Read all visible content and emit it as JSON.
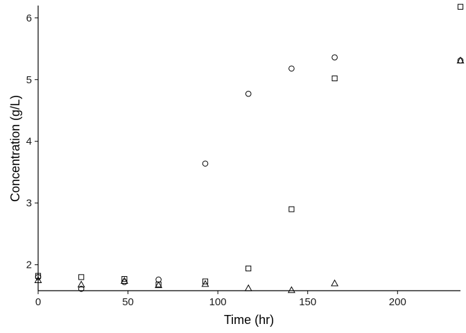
{
  "chart_data": {
    "type": "scatter",
    "title": "",
    "xlabel": "Time (hr)",
    "ylabel": "Concentration (g/L)",
    "xlim": [
      0,
      235
    ],
    "ylim": [
      1.58,
      6.2
    ],
    "xticks": [
      0,
      50,
      100,
      150,
      200
    ],
    "yticks": [
      2,
      3,
      4,
      5,
      6
    ],
    "grid": false,
    "legend": "none",
    "series": [
      {
        "marker": "circle",
        "x": [
          0,
          24,
          48,
          67,
          93,
          117,
          141,
          165,
          235
        ],
        "y": [
          1.8,
          1.61,
          1.72,
          1.76,
          3.64,
          4.77,
          5.18,
          5.36,
          5.31
        ]
      },
      {
        "marker": "square",
        "x": [
          0,
          24,
          48,
          67,
          93,
          117,
          141,
          165,
          235
        ],
        "y": [
          1.82,
          1.8,
          1.77,
          1.68,
          1.73,
          1.94,
          2.9,
          5.02,
          6.18
        ]
      },
      {
        "marker": "triangle",
        "x": [
          0,
          24,
          48,
          67,
          93,
          117,
          141,
          165,
          235
        ],
        "y": [
          1.75,
          1.68,
          1.74,
          1.67,
          1.69,
          1.62,
          1.59,
          1.7,
          5.31
        ]
      }
    ]
  }
}
